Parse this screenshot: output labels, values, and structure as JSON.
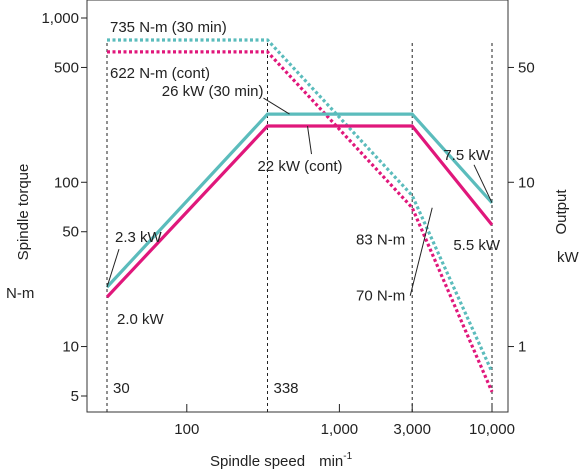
{
  "chart_data": {
    "type": "line",
    "xlabel": "Spindle speed",
    "xunit": "min",
    "xunit_sup": "-1",
    "ylabel_left": "Spindle torque",
    "yunit_left": "N-m",
    "ylabel_right": "Output",
    "yunit_right": "kW",
    "x_scale": "log",
    "y_scale": "log",
    "xlim": [
      30,
      10000
    ],
    "ylim_left": [
      4,
      1000
    ],
    "ylim_right": [
      0.4,
      100
    ],
    "x_ticks": [
      {
        "value": 100,
        "label": "100"
      },
      {
        "value": 1000,
        "label": "1,000"
      },
      {
        "value": 3000,
        "label": "3,000"
      },
      {
        "value": 10000,
        "label": "10,000"
      }
    ],
    "y_ticks_left": [
      {
        "value": 1000,
        "label": "1,000"
      },
      {
        "value": 500,
        "label": "500"
      },
      {
        "value": 100,
        "label": "100"
      },
      {
        "value": 50,
        "label": "50"
      },
      {
        "value": 10,
        "label": "10"
      },
      {
        "value": 5,
        "label": "5"
      }
    ],
    "y_ticks_right": [
      {
        "value": 50,
        "label": "50"
      },
      {
        "value": 10,
        "label": "10"
      },
      {
        "value": 1,
        "label": "1"
      }
    ],
    "vertical_markers": [
      {
        "x": 30,
        "label": "30"
      },
      {
        "x": 338,
        "label": "338"
      },
      {
        "x": 3000,
        "label": ""
      },
      {
        "x": 10000,
        "label": ""
      }
    ],
    "series": [
      {
        "axis": "left",
        "style": "dotted",
        "color": "#5bbcbc",
        "points": [
          [
            30,
            735
          ],
          [
            338,
            735
          ],
          [
            3000,
            83
          ],
          [
            10000,
            7
          ]
        ]
      },
      {
        "axis": "left",
        "style": "dotted",
        "color": "#e0177b",
        "points": [
          [
            30,
            622
          ],
          [
            338,
            622
          ],
          [
            3000,
            70
          ],
          [
            10000,
            5.3
          ]
        ]
      },
      {
        "axis": "right",
        "style": "solid",
        "color": "#5bbcbc",
        "points": [
          [
            30,
            2.3
          ],
          [
            338,
            26
          ],
          [
            3000,
            26
          ],
          [
            10000,
            7.5
          ]
        ]
      },
      {
        "axis": "right",
        "style": "solid",
        "color": "#e0177b",
        "points": [
          [
            30,
            2.0
          ],
          [
            338,
            22
          ],
          [
            3000,
            22
          ],
          [
            10000,
            5.5
          ]
        ]
      }
    ],
    "annotations": [
      {
        "text": "735 N-m (30 min)",
        "x": 30,
        "y": 735,
        "axis": "left"
      },
      {
        "text": "622 N-m (cont)",
        "x": 30,
        "y": 622,
        "axis": "left"
      },
      {
        "text": "26 kW (30 min)",
        "x": 338,
        "y": 26,
        "axis": "right"
      },
      {
        "text": "22 kW (cont)",
        "x": 338,
        "y": 22,
        "axis": "right"
      },
      {
        "text": "2.3 kW",
        "x": 30,
        "y": 2.3,
        "axis": "right"
      },
      {
        "text": "2.0 kW",
        "x": 30,
        "y": 2.0,
        "axis": "right"
      },
      {
        "text": "83 N-m",
        "x": 3000,
        "y": 83,
        "axis": "left"
      },
      {
        "text": "70 N-m",
        "x": 3000,
        "y": 70,
        "axis": "left"
      },
      {
        "text": "7.5 kW",
        "x": 10000,
        "y": 7.5,
        "axis": "right"
      },
      {
        "text": "5.5 kW",
        "x": 10000,
        "y": 5.5,
        "axis": "right"
      }
    ],
    "grid": false,
    "legend": "none"
  }
}
